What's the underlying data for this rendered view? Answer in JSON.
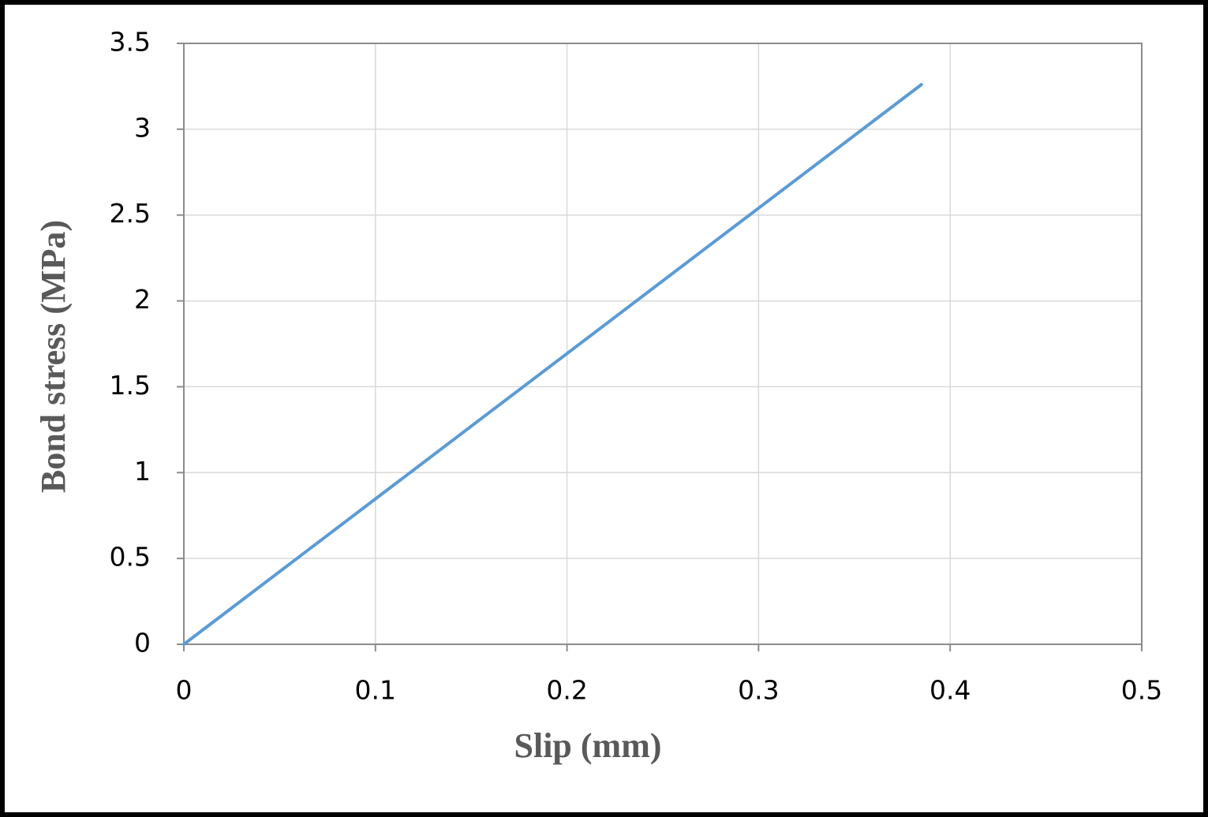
{
  "chart_data": {
    "type": "line",
    "x_label": "Slip (mm)",
    "y_label": "Bond stress (MPa)",
    "x": [
      0,
      0.385
    ],
    "values": [
      0,
      3.26
    ],
    "color": "#5b9bd5",
    "xlim": [
      0,
      0.5
    ],
    "xticks": [
      0,
      0.1,
      0.2,
      0.3,
      0.4,
      0.5
    ],
    "ylim": [
      0,
      3.5
    ],
    "yticks": [
      0,
      0.5,
      1,
      1.5,
      2,
      2.5,
      3,
      3.5
    ],
    "grid": true
  }
}
